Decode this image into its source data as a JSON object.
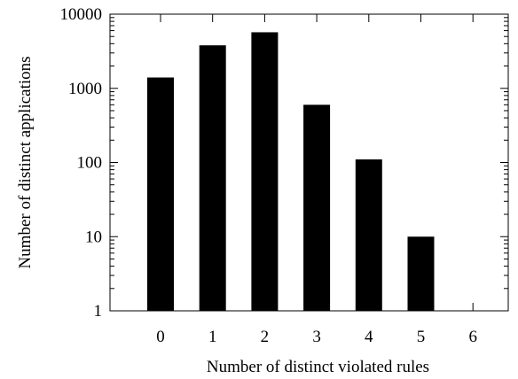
{
  "chart_data": {
    "type": "bar",
    "title": "",
    "xlabel": "Number of distinct violated rules",
    "ylabel": "Number of distinct applications",
    "y_scale": "log",
    "ylim": [
      1,
      10000
    ],
    "grid": false,
    "legend": "none",
    "bar_color": "#000000",
    "categories": [
      "0",
      "1",
      "2",
      "3",
      "4",
      "5",
      "6"
    ],
    "values": [
      1400,
      3800,
      5700,
      600,
      110,
      10,
      1
    ],
    "x_tick_labels": [
      "0",
      "1",
      "2",
      "3",
      "4",
      "5",
      "6"
    ],
    "y_tick_labels": [
      "1",
      "10",
      "100",
      "1000",
      "10000"
    ],
    "y_ticks": [
      1,
      10,
      100,
      1000,
      10000
    ]
  }
}
